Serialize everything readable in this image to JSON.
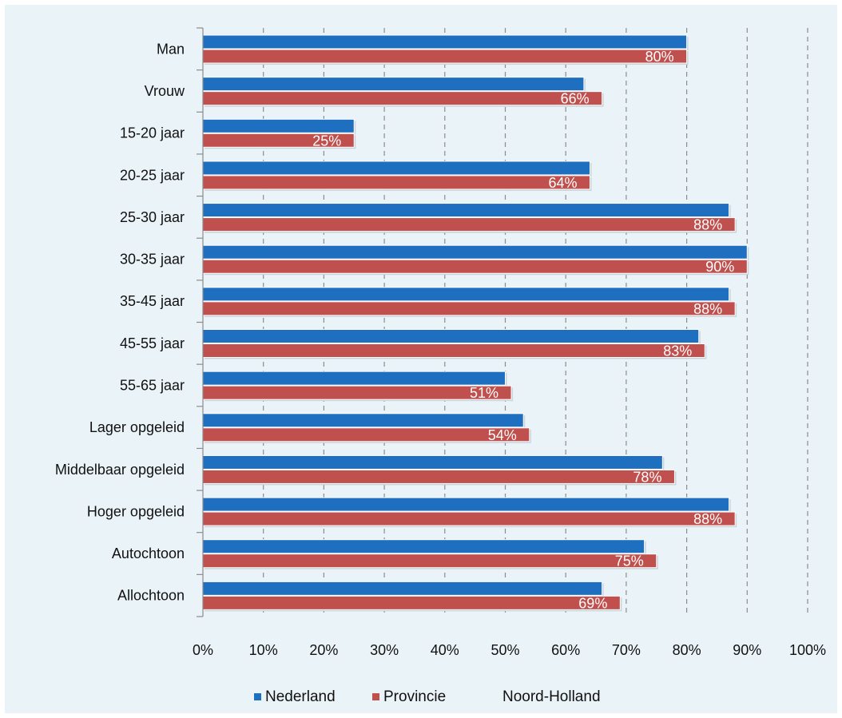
{
  "chart_data": {
    "type": "bar",
    "orientation": "horizontal",
    "categories": [
      "Man",
      "Vrouw",
      "15-20 jaar",
      "20-25 jaar",
      "25-30 jaar",
      "30-35 jaar",
      "35-45 jaar",
      "45-55 jaar",
      "55-65 jaar",
      "Lager opgeleid",
      "Middelbaar opgeleid",
      "Hoger opgeleid",
      "Autochtoon",
      "Allochtoon"
    ],
    "series": [
      {
        "name": "Nederland",
        "color": "#1f6fc0",
        "values": [
          80,
          63,
          25,
          64,
          87,
          90,
          87,
          82,
          50,
          53,
          76,
          87,
          73,
          66
        ]
      },
      {
        "name": "Provincie",
        "color": "#c0504d",
        "values": [
          80,
          66,
          25,
          64,
          88,
          90,
          88,
          83,
          51,
          54,
          78,
          88,
          75,
          69
        ],
        "data_labels": [
          "80%",
          "66%",
          "25%",
          "64%",
          "88%",
          "90%",
          "88%",
          "83%",
          "51%",
          "54%",
          "78%",
          "88%",
          "75%",
          "69%"
        ]
      }
    ],
    "x_ticks": [
      "0%",
      "10%",
      "20%",
      "30%",
      "40%",
      "50%",
      "60%",
      "70%",
      "80%",
      "90%",
      "100%"
    ],
    "xlim": [
      0,
      100
    ],
    "grid": "vertical dashed",
    "legend_position": "bottom",
    "legend_extra_text": "Noord-Holland",
    "title": "",
    "xlabel": "",
    "ylabel": ""
  }
}
